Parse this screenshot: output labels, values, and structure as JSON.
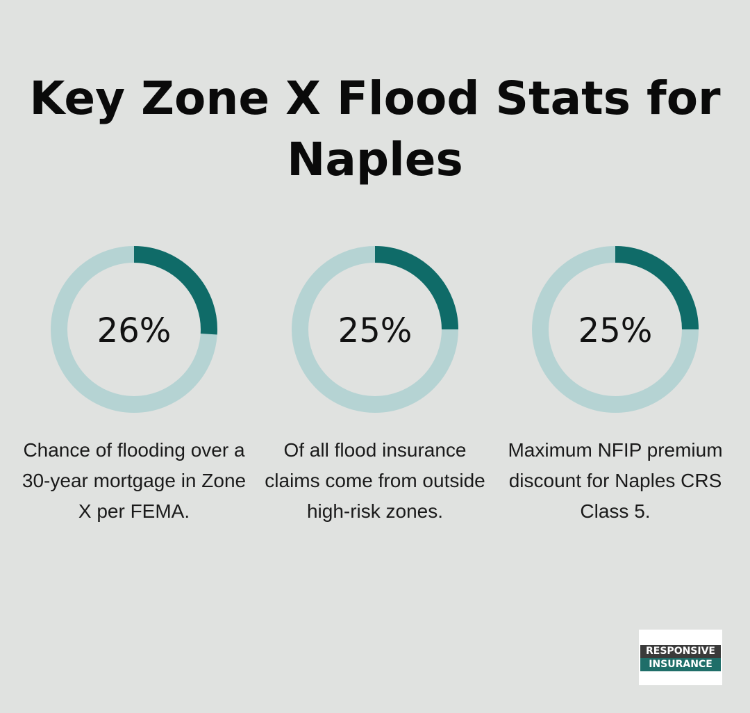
{
  "title": "Key Zone X Flood Stats for Naples",
  "colors": {
    "background": "#e0e2e0",
    "track": "#b5d3d3",
    "fill": "#0f6b68"
  },
  "chart_data": [
    {
      "type": "pie",
      "variant": "donut",
      "value": 26,
      "label": "26%",
      "caption": "Chance of flooding over a 30-year mortgage in Zone X per FEMA."
    },
    {
      "type": "pie",
      "variant": "donut",
      "value": 25,
      "label": "25%",
      "caption": "Of all flood insurance claims come from outside high-risk zones."
    },
    {
      "type": "pie",
      "variant": "donut",
      "value": 25,
      "label": "25%",
      "caption": "Maximum NFIP premium discount for Naples CRS Class 5."
    }
  ],
  "logo": {
    "line1": "RESPONSIVE",
    "line2": "INSURANCE"
  }
}
